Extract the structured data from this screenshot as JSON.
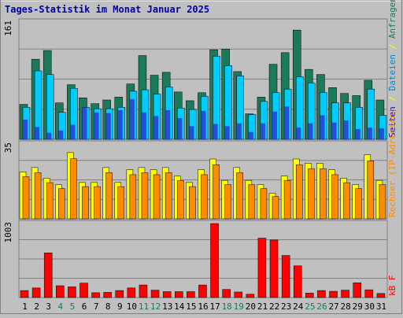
{
  "title": "Tages-Statistik im Monat Januar 2025",
  "chart_data": {
    "type": "bar",
    "days": [
      "1",
      "2",
      "3",
      "4",
      "5",
      "6",
      "7",
      "8",
      "9",
      "10",
      "11",
      "12",
      "13",
      "14",
      "15",
      "16",
      "17",
      "18",
      "19",
      "20",
      "21",
      "22",
      "23",
      "24",
      "25",
      "26",
      "27",
      "28",
      "29",
      "30",
      "31"
    ],
    "weekend_days": [
      "4",
      "5",
      "11",
      "12",
      "18",
      "19",
      "25",
      "26"
    ],
    "panels": [
      {
        "id": "hits",
        "max_label": "161",
        "ymax": 161,
        "side_labels": [
          "Anfragen",
          " / ",
          "Dateien",
          " / ",
          "Seiten"
        ],
        "series": [
          {
            "name": "Anfragen",
            "color": "#1a7a5a",
            "values": [
              48,
              110,
              122,
              50,
              75,
              57,
              49,
              54,
              58,
              76,
              115,
              88,
              92,
              65,
              53,
              64,
              123,
              124,
              93,
              35,
              58,
              103,
              119,
              150,
              96,
              89,
              71,
              63,
              60,
              81,
              54
            ]
          },
          {
            "name": "Dateien",
            "color": "#00ccff",
            "values": [
              44,
              94,
              89,
              37,
              70,
              44,
              42,
              42,
              44,
              66,
              68,
              62,
              72,
              43,
              41,
              59,
              114,
              101,
              87,
              34,
              52,
              64,
              69,
              86,
              77,
              64,
              50,
              50,
              44,
              69,
              33
            ]
          },
          {
            "name": "Seiten",
            "color": "#2838d8",
            "values": [
              27,
              17,
              9,
              12,
              20,
              44,
              37,
              36,
              40,
              55,
              37,
              32,
              40,
              29,
              18,
              39,
              21,
              18,
              22,
              10,
              22,
              38,
              45,
              16,
              22,
              33,
              23,
              26,
              14,
              16,
              15
            ]
          }
        ]
      },
      {
        "id": "hosts",
        "max_label": "35",
        "ymax": 35,
        "side_labels": [
          "Rechner (IP-Adressen)"
        ],
        "series": [
          {
            "name": "Rechner",
            "color_front": "#ff8c00",
            "color_back": "#ffff00",
            "values": [
              22,
              24,
              19,
              16,
              31,
              17,
              17,
              24,
              17,
              23,
              24,
              23,
              24,
              20,
              17,
              23,
              28,
              18,
              24,
              18,
              16,
              12,
              20,
              28,
              26,
              26,
              23,
              19,
              16,
              30,
              18
            ]
          }
        ]
      },
      {
        "id": "kb",
        "max_label": "1003",
        "ymax": 1003,
        "side_labels": [
          "kB F"
        ],
        "series": [
          {
            "name": "kB F",
            "color": "#ff0000",
            "values": [
              95,
              130,
              605,
              160,
              145,
              195,
              65,
              70,
              95,
              130,
              170,
              100,
              80,
              80,
              80,
              170,
              1003,
              110,
              75,
              45,
              805,
              780,
              570,
              430,
              60,
              95,
              85,
              100,
              200,
              105,
              55
            ]
          }
        ]
      }
    ]
  }
}
